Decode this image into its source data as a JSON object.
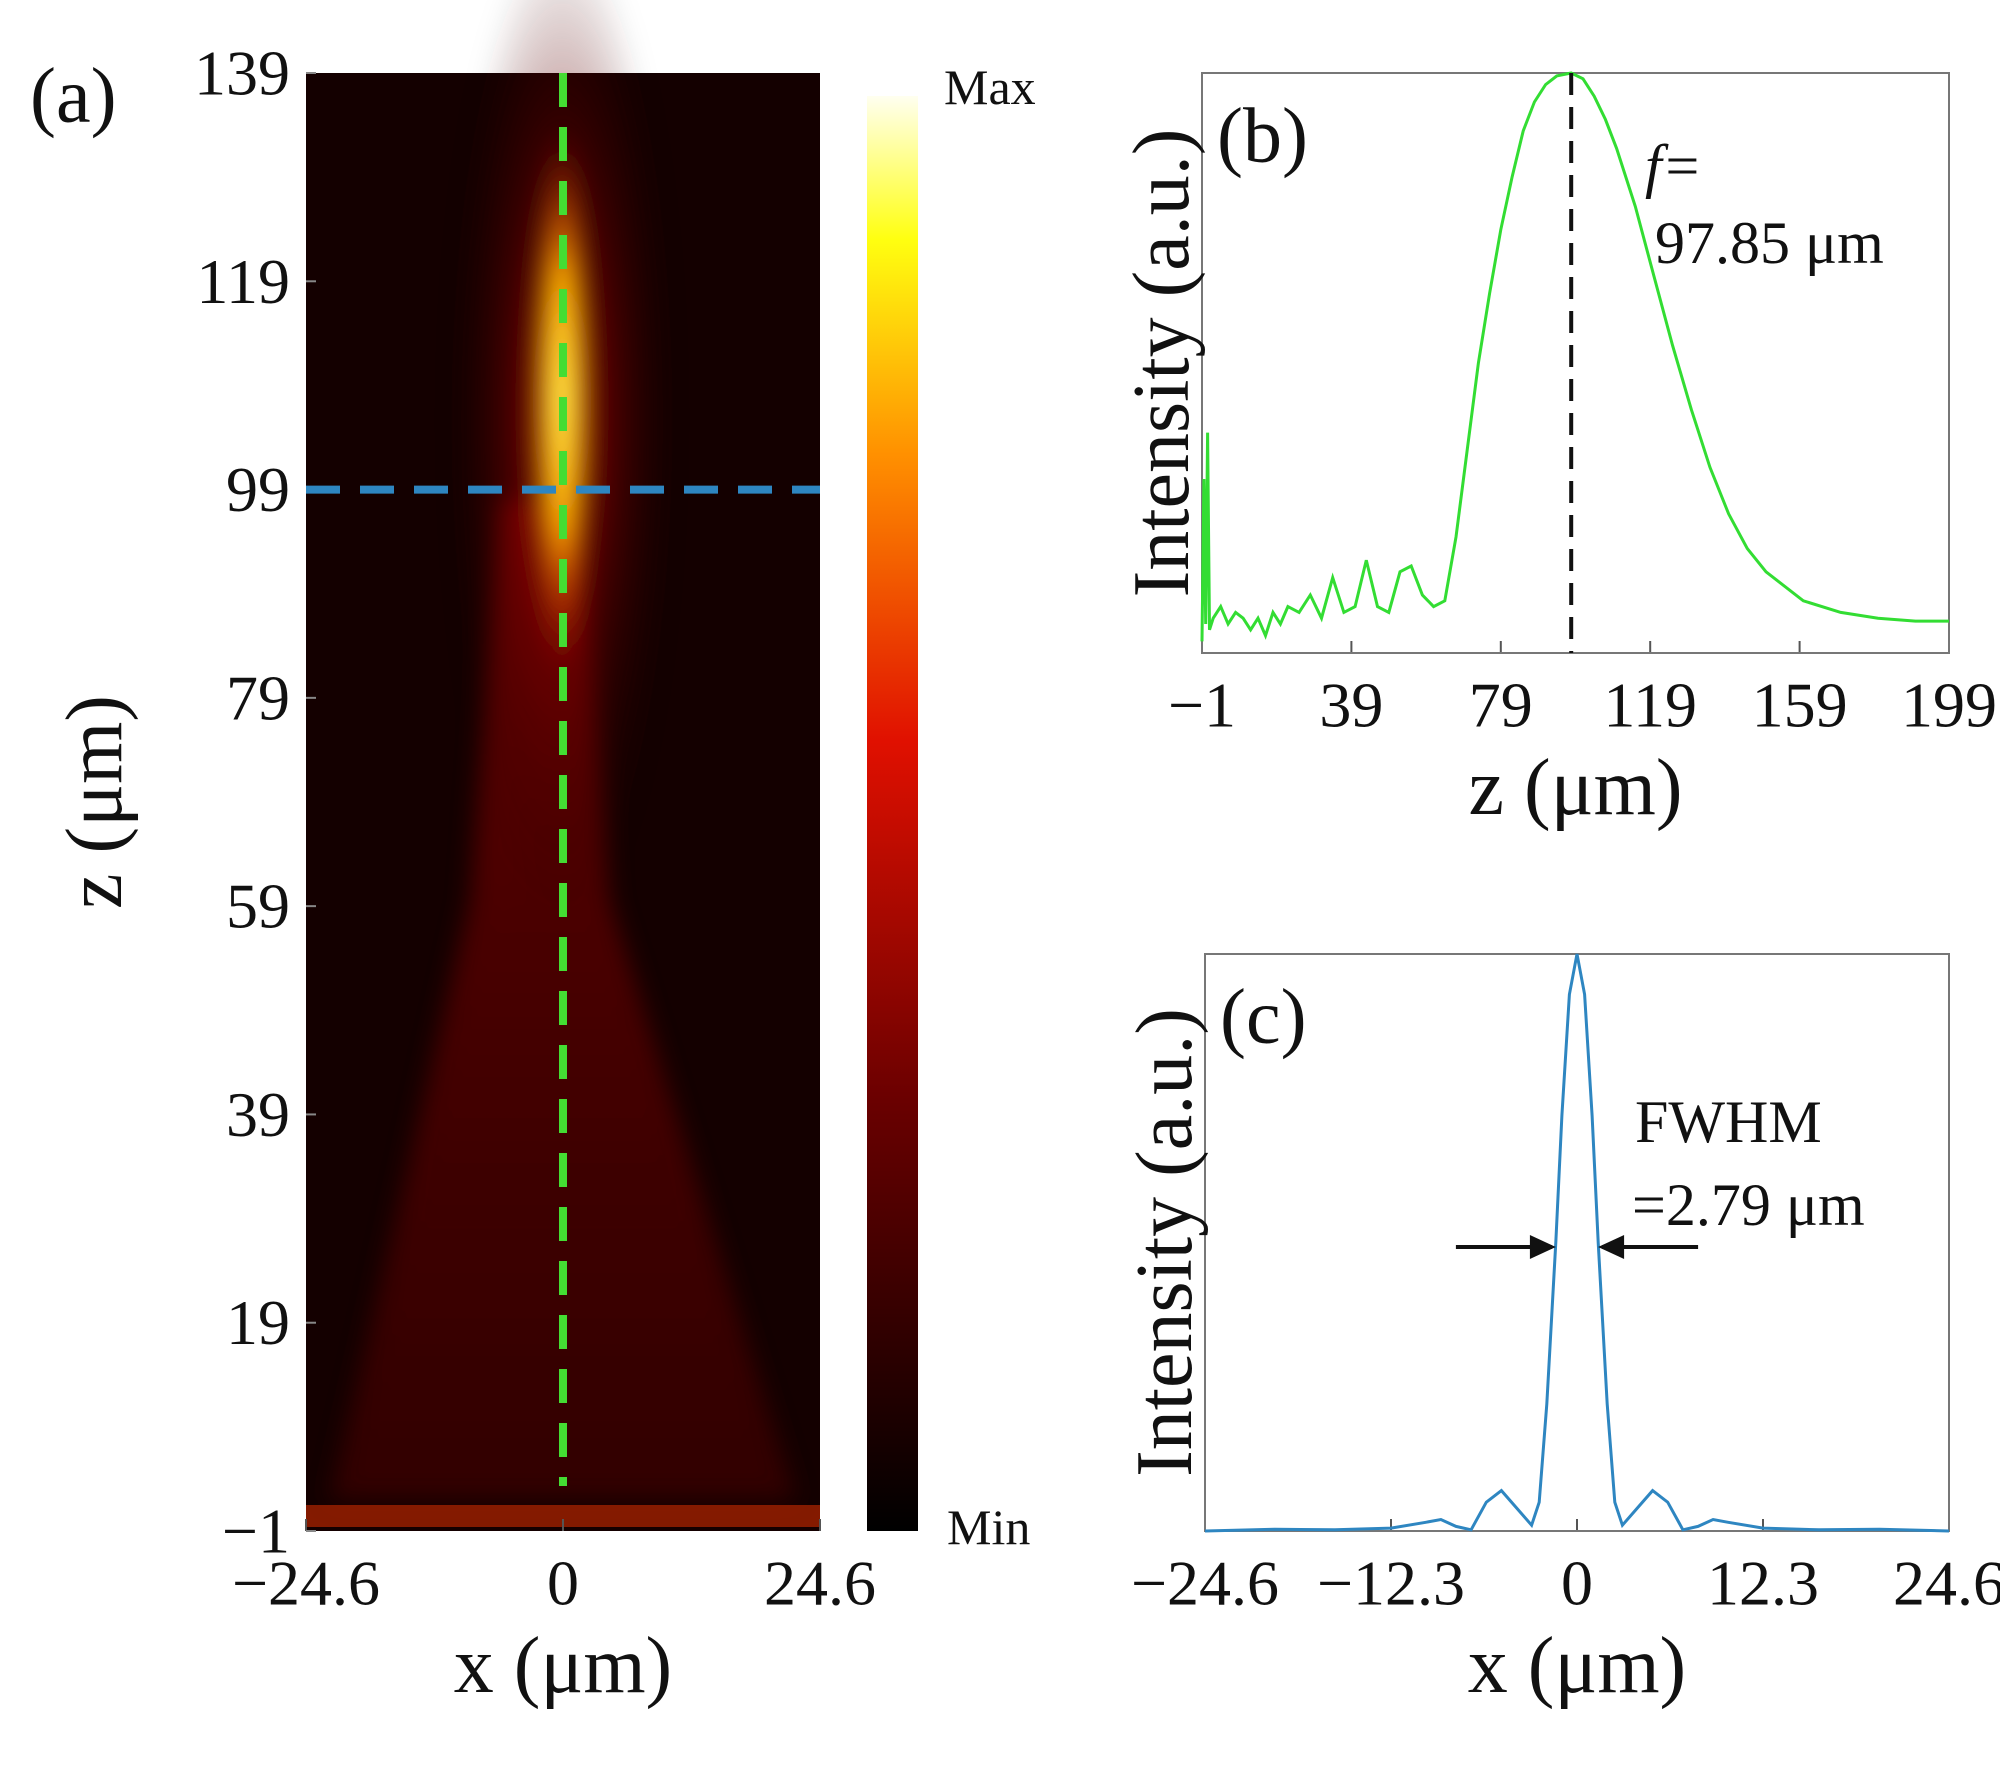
{
  "chart_data": [
    {
      "type": "heatmap",
      "panel_label": "(a)",
      "x_label": "x (μm)",
      "y_label": "z (μm)",
      "xlim": [
        -24.6,
        24.6
      ],
      "xticks": [
        {
          "value": -24.6,
          "label": "−24.6"
        },
        0,
        24.6
      ],
      "ylim": [
        -1,
        139
      ],
      "yticks": [
        {
          "value": -1,
          "label": "−1"
        },
        19,
        39,
        59,
        79,
        99,
        119,
        139
      ],
      "colorbar_max_label": "Max",
      "colorbar_min_label": "Min",
      "vline_x": 0,
      "vline_color": "#44dd33",
      "hline_z": 99,
      "hline_color": "#2e86c1"
    },
    {
      "type": "line",
      "panel_label": "(b)",
      "x_label": "z (μm)",
      "y_label": "Intensity (a.u.)",
      "color": "#33dd33",
      "xlim": [
        -1,
        199
      ],
      "xticks": [
        {
          "value": -1,
          "label": "−1"
        },
        39,
        79,
        119,
        159,
        199
      ],
      "ylim": [
        0,
        1
      ],
      "x": [
        -1,
        -0.5,
        0,
        0.5,
        1,
        2,
        4,
        6,
        8,
        10,
        12,
        14,
        16,
        18,
        20,
        22,
        25,
        28,
        31,
        34,
        37,
        40,
        43,
        46,
        49,
        52,
        55,
        58,
        61,
        64,
        67,
        70,
        73,
        76,
        79,
        82,
        85,
        88,
        91,
        94,
        97.85,
        101,
        104,
        107,
        110,
        115,
        120,
        125,
        130,
        135,
        140,
        145,
        150,
        160,
        170,
        180,
        190,
        199
      ],
      "values": [
        0.02,
        0.3,
        0.05,
        0.38,
        0.04,
        0.06,
        0.08,
        0.05,
        0.07,
        0.06,
        0.04,
        0.06,
        0.03,
        0.07,
        0.05,
        0.08,
        0.07,
        0.1,
        0.06,
        0.13,
        0.07,
        0.08,
        0.16,
        0.08,
        0.07,
        0.14,
        0.15,
        0.1,
        0.08,
        0.09,
        0.2,
        0.35,
        0.5,
        0.62,
        0.73,
        0.82,
        0.9,
        0.95,
        0.98,
        0.995,
        1,
        0.99,
        0.96,
        0.92,
        0.87,
        0.77,
        0.65,
        0.53,
        0.42,
        0.32,
        0.24,
        0.18,
        0.14,
        0.09,
        0.07,
        0.06,
        0.055,
        0.055
      ],
      "annotation": {
        "prefix": "f=",
        "value": 97.85,
        "label": "97.85 μm"
      }
    },
    {
      "type": "line",
      "panel_label": "(c)",
      "x_label": "x (μm)",
      "y_label": "Intensity (a.u.)",
      "color": "#2e86c1",
      "xlim": [
        -24.6,
        24.6
      ],
      "xticks": [
        {
          "value": -24.6,
          "label": "−24.6"
        },
        {
          "value": -12.3,
          "label": "−12.3"
        },
        0,
        12.3,
        24.6
      ],
      "ylim": [
        0,
        1
      ],
      "x": [
        -24.6,
        -20,
        -16,
        -12.3,
        -10,
        -9,
        -8,
        -7,
        -6,
        -5,
        -4,
        -3,
        -2.5,
        -2,
        -1.4,
        -1,
        -0.5,
        0,
        0.5,
        1,
        1.4,
        2,
        2.5,
        3,
        4,
        5,
        6,
        7,
        8,
        9,
        10,
        12.3,
        16,
        20,
        24.6
      ],
      "values": [
        0,
        0.003,
        0.002,
        0.005,
        0.015,
        0.02,
        0.008,
        0.002,
        0.05,
        0.07,
        0.04,
        0.01,
        0.05,
        0.22,
        0.5,
        0.72,
        0.93,
        1,
        0.93,
        0.72,
        0.5,
        0.22,
        0.05,
        0.01,
        0.04,
        0.07,
        0.05,
        0.002,
        0.008,
        0.02,
        0.015,
        0.005,
        0.002,
        0.003,
        0
      ],
      "annotation": {
        "title": "FWHM",
        "value": 2.79,
        "label": "=2.79 μm"
      }
    }
  ]
}
